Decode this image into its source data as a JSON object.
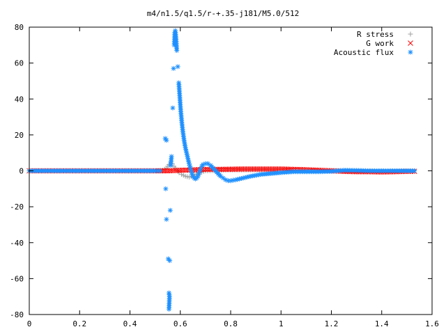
{
  "chart_data": {
    "type": "scatter",
    "title": "m4/n1.5/q1.5/r-+.35-j181/M5.0/512",
    "xlabel": "",
    "ylabel": "",
    "xlim": [
      0,
      1.6
    ],
    "ylim": [
      -80,
      80
    ],
    "x_ticks": [
      "0",
      "0.2",
      "0.4",
      "0.6",
      "0.8",
      "1",
      "1.2",
      "1.4",
      "1.6"
    ],
    "y_ticks": [
      "80",
      "60",
      "40",
      "20",
      "0",
      "-20",
      "-40",
      "-60",
      "-80"
    ],
    "grid": false,
    "legend_position": "top-right",
    "series": [
      {
        "name": "R stress",
        "marker": "plus",
        "color": "#a0a0a0",
        "points": [
          [
            0.0,
            0
          ],
          [
            0.1,
            0
          ],
          [
            0.2,
            0
          ],
          [
            0.3,
            0
          ],
          [
            0.4,
            0
          ],
          [
            0.5,
            0
          ],
          [
            0.53,
            0.3
          ],
          [
            0.545,
            1.5
          ],
          [
            0.555,
            3.5
          ],
          [
            0.562,
            5
          ],
          [
            0.568,
            4
          ],
          [
            0.575,
            2.5
          ],
          [
            0.585,
            0.5
          ],
          [
            0.595,
            -1
          ],
          [
            0.605,
            -2
          ],
          [
            0.62,
            -3
          ],
          [
            0.635,
            -3.5
          ],
          [
            0.65,
            -3
          ],
          [
            0.67,
            -1.5
          ],
          [
            0.7,
            0
          ],
          [
            0.75,
            0.3
          ],
          [
            0.8,
            0.5
          ],
          [
            0.9,
            0.5
          ],
          [
            1.0,
            0.5
          ],
          [
            1.1,
            0.3
          ],
          [
            1.2,
            0.2
          ],
          [
            1.3,
            0.1
          ],
          [
            1.4,
            0
          ],
          [
            1.53,
            0
          ]
        ]
      },
      {
        "name": "G work",
        "marker": "cross",
        "color": "#ff0000",
        "points": [
          [
            0.0,
            0
          ],
          [
            0.2,
            0
          ],
          [
            0.4,
            0
          ],
          [
            0.55,
            0
          ],
          [
            0.6,
            0.3
          ],
          [
            0.65,
            0.5
          ],
          [
            0.7,
            0.8
          ],
          [
            0.75,
            0.8
          ],
          [
            0.8,
            0.9
          ],
          [
            0.85,
            1
          ],
          [
            0.9,
            1
          ],
          [
            0.95,
            1
          ],
          [
            1.0,
            1
          ],
          [
            1.05,
            0.8
          ],
          [
            1.1,
            0.6
          ],
          [
            1.15,
            0.3
          ],
          [
            1.2,
            0
          ],
          [
            1.25,
            -0.3
          ],
          [
            1.3,
            -0.5
          ],
          [
            1.35,
            -0.5
          ],
          [
            1.4,
            -0.6
          ],
          [
            1.45,
            -0.5
          ],
          [
            1.5,
            -0.3
          ],
          [
            1.53,
            -0.3
          ]
        ]
      },
      {
        "name": "Acoustic flux",
        "marker": "star",
        "color": "#1e90ff",
        "points": [
          [
            0.0,
            0
          ],
          [
            0.05,
            0
          ],
          [
            0.1,
            0
          ],
          [
            0.15,
            0
          ],
          [
            0.2,
            0
          ],
          [
            0.25,
            0
          ],
          [
            0.3,
            0
          ],
          [
            0.35,
            0
          ],
          [
            0.4,
            0
          ],
          [
            0.45,
            0
          ],
          [
            0.5,
            0
          ],
          [
            0.52,
            0
          ],
          [
            0.54,
            18
          ],
          [
            0.545,
            17
          ],
          [
            0.542,
            -10
          ],
          [
            0.545,
            -27
          ],
          [
            0.552,
            -49
          ],
          [
            0.558,
            -50
          ],
          [
            0.555,
            -68
          ],
          [
            0.557,
            -70
          ],
          [
            0.555,
            -77
          ],
          [
            0.56,
            -22
          ],
          [
            0.562,
            3
          ],
          [
            0.565,
            8
          ],
          [
            0.57,
            35
          ],
          [
            0.573,
            57
          ],
          [
            0.576,
            70
          ],
          [
            0.578,
            77
          ],
          [
            0.58,
            78
          ],
          [
            0.583,
            74
          ],
          [
            0.586,
            67
          ],
          [
            0.59,
            58
          ],
          [
            0.594,
            49
          ],
          [
            0.598,
            41
          ],
          [
            0.602,
            33
          ],
          [
            0.606,
            27
          ],
          [
            0.61,
            22
          ],
          [
            0.615,
            17
          ],
          [
            0.62,
            13
          ],
          [
            0.625,
            10
          ],
          [
            0.63,
            7
          ],
          [
            0.635,
            4
          ],
          [
            0.64,
            1.5
          ],
          [
            0.645,
            -1
          ],
          [
            0.65,
            -3
          ],
          [
            0.655,
            -4
          ],
          [
            0.66,
            -4.5
          ],
          [
            0.665,
            -4
          ],
          [
            0.67,
            -3
          ],
          [
            0.675,
            -1
          ],
          [
            0.68,
            1
          ],
          [
            0.685,
            2.5
          ],
          [
            0.69,
            3.5
          ],
          [
            0.7,
            4
          ],
          [
            0.71,
            4
          ],
          [
            0.72,
            3
          ],
          [
            0.73,
            1.5
          ],
          [
            0.74,
            0
          ],
          [
            0.75,
            -1.5
          ],
          [
            0.76,
            -3
          ],
          [
            0.77,
            -4
          ],
          [
            0.78,
            -5
          ],
          [
            0.79,
            -5.5
          ],
          [
            0.8,
            -5.5
          ],
          [
            0.82,
            -5
          ],
          [
            0.85,
            -4
          ],
          [
            0.88,
            -3
          ],
          [
            0.92,
            -2
          ],
          [
            0.96,
            -1.5
          ],
          [
            1.0,
            -1
          ],
          [
            1.05,
            -0.5
          ],
          [
            1.1,
            -0.5
          ],
          [
            1.15,
            -0.5
          ],
          [
            1.2,
            -0.3
          ],
          [
            1.25,
            0.3
          ],
          [
            1.3,
            0.2
          ],
          [
            1.35,
            0
          ],
          [
            1.4,
            0
          ],
          [
            1.45,
            0
          ],
          [
            1.5,
            0
          ],
          [
            1.53,
            0
          ]
        ]
      }
    ]
  }
}
